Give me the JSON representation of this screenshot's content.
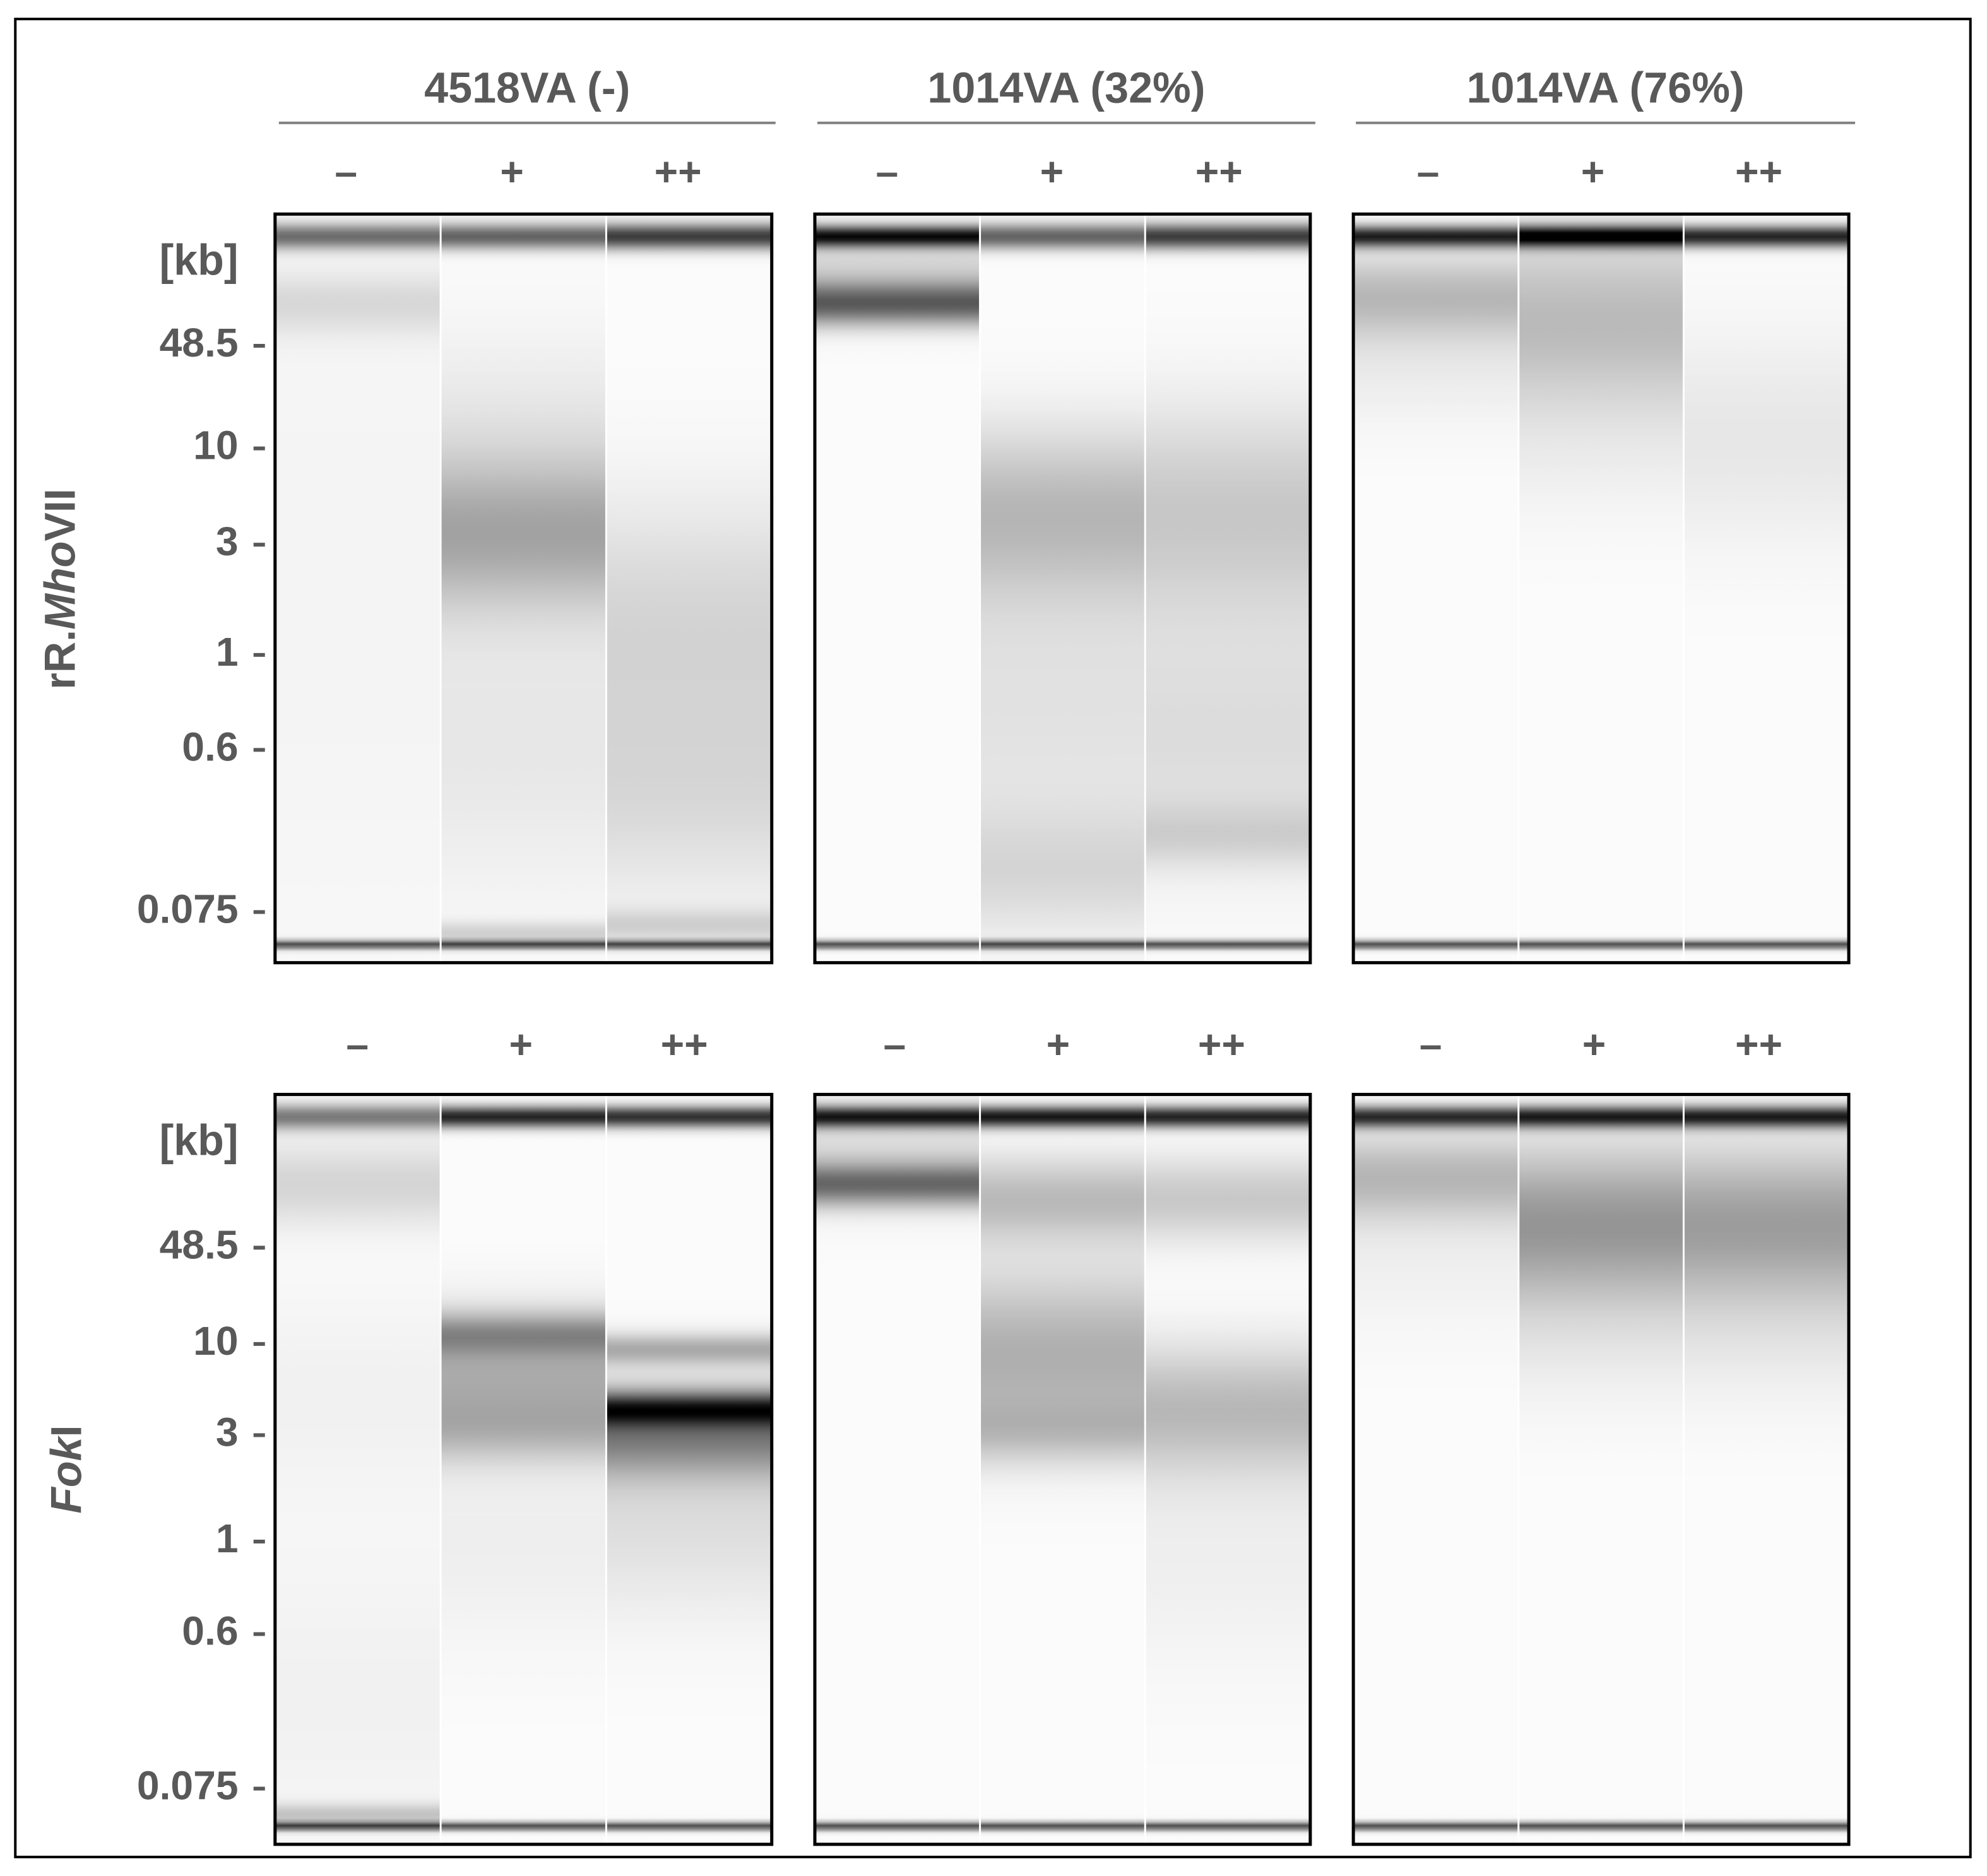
{
  "columns": [
    {
      "title": "4518VA (-)"
    },
    {
      "title": "1014VA (32%)"
    },
    {
      "title": "1014VA (76%)"
    }
  ],
  "lane_labels": [
    "–",
    "+",
    "++"
  ],
  "rows": [
    {
      "label_parts": [
        "rR.",
        "Mho",
        "VII"
      ]
    },
    {
      "label_parts": [
        "Fok",
        "I"
      ]
    }
  ],
  "unit": "[kb]",
  "ladder": [
    "48.5",
    "10",
    "3",
    "1",
    "0.6",
    "0.075"
  ]
}
